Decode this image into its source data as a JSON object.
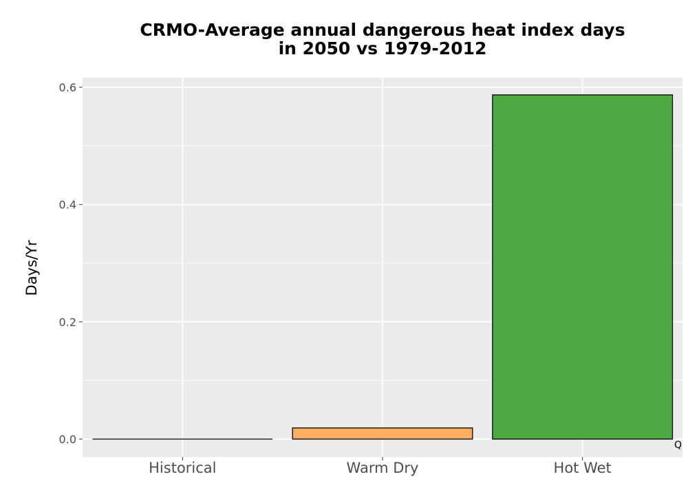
{
  "chart_data": {
    "type": "bar",
    "title": [
      "CRMO-Average annual dangerous heat index days",
      "in 2050 vs 1979-2012"
    ],
    "xlabel": "",
    "ylabel": "Days/Yr",
    "categories": [
      "Historical",
      "Warm Dry",
      "Hot Wet"
    ],
    "values": [
      0.0,
      0.019,
      0.587
    ],
    "colors": [
      "#000000",
      "#fdae61",
      "#4daa43"
    ],
    "ylim": [
      -0.03,
      0.62
    ],
    "yticks": [
      0.0,
      0.2,
      0.4,
      0.6
    ],
    "ytick_labels": [
      "0.0",
      "0.2",
      "0.4",
      "0.6"
    ],
    "grid": true,
    "panel_background": "#ebebeb",
    "bar_outline": "#000000"
  },
  "corner_mark": "Q"
}
